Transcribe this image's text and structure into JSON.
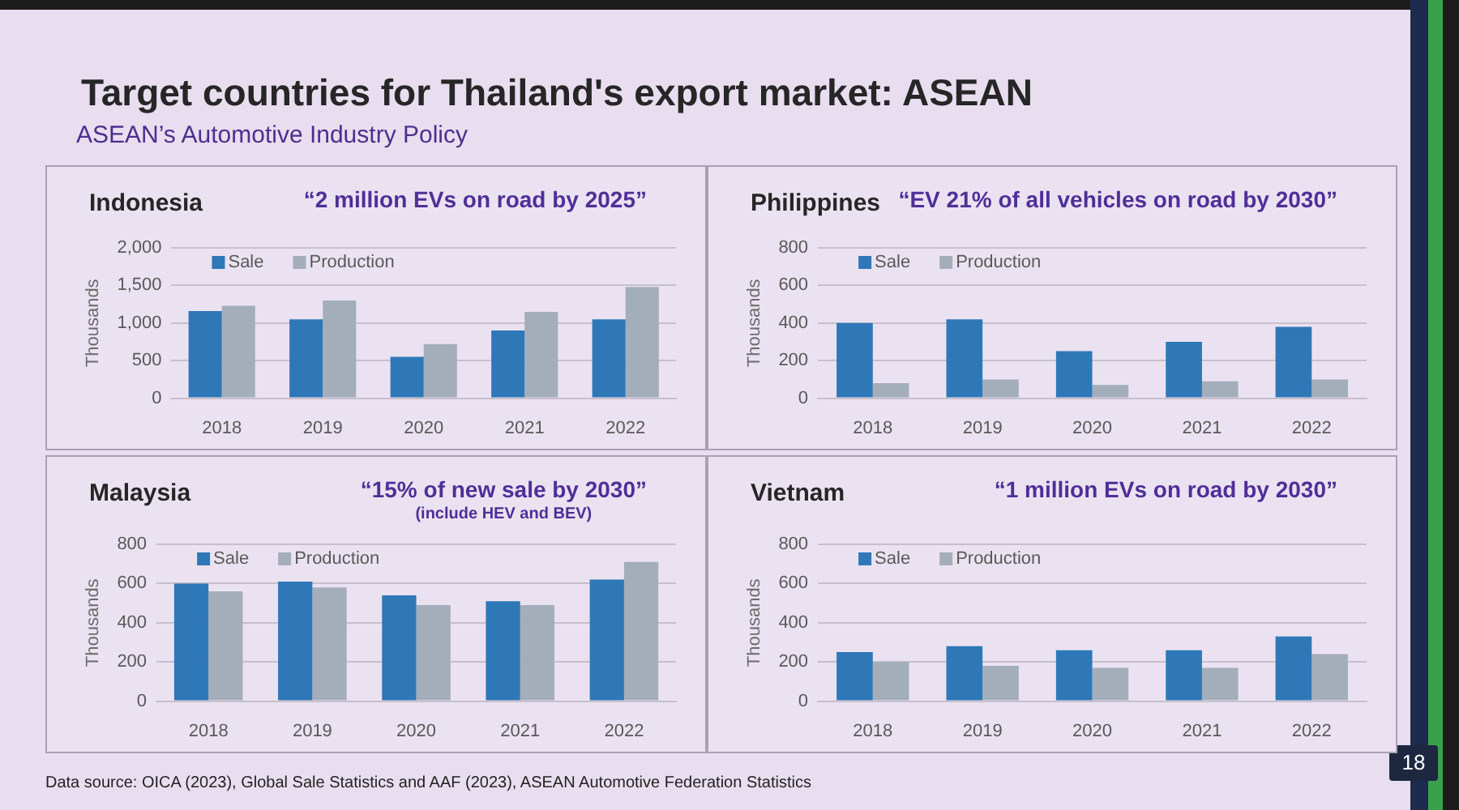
{
  "chart_data": [
    {
      "type": "other",
      "title": "Target countries for Thailand's export market: ASEAN",
      "subtitle": "ASEAN’s Automotive Industry Policy",
      "annotations": [
        "Data source: OICA (2023), Global Sale Statistics and AAF (2023), ASEAN Automotive Federation Statistics",
        "18"
      ]
    },
    {
      "type": "bar",
      "title": "Indonesia",
      "subtitle": "“2 million EVs on road by 2025”",
      "ylabel": "Thousands",
      "categories": [
        "2018",
        "2019",
        "2020",
        "2021",
        "2022"
      ],
      "series": [
        {
          "name": "Sale",
          "color": "#2e78b8",
          "values": [
            1160,
            1050,
            550,
            900,
            1050
          ]
        },
        {
          "name": "Production",
          "color": "#a4aebb",
          "values": [
            1230,
            1300,
            720,
            1150,
            1480
          ]
        }
      ],
      "ylim": [
        0,
        2000
      ],
      "yticks": [
        0,
        500,
        {
          "value": 1000,
          "label": "1,000"
        },
        {
          "value": 1500,
          "label": "1,500"
        },
        {
          "value": 2000,
          "label": "2,000"
        }
      ],
      "grid": "y",
      "legend": "top left"
    },
    {
      "type": "bar",
      "title": "Philippines",
      "subtitle": "“EV 21% of all vehicles on road by 2030”",
      "ylabel": "Thousands",
      "categories": [
        "2018",
        "2019",
        "2020",
        "2021",
        "2022"
      ],
      "series": [
        {
          "name": "Sale",
          "color": "#2e78b8",
          "values": [
            400,
            420,
            250,
            300,
            380
          ]
        },
        {
          "name": "Production",
          "color": "#a4aebb",
          "values": [
            80,
            100,
            70,
            90,
            100
          ]
        }
      ],
      "ylim": [
        0,
        800
      ],
      "yticks": [
        0,
        200,
        400,
        600,
        800
      ],
      "grid": "y",
      "legend": "top left"
    },
    {
      "type": "bar",
      "title": "Malaysia",
      "subtitle": "“15% of new sale by 2030”",
      "annotations": [
        "(include HEV and BEV)"
      ],
      "ylabel": "Thousands",
      "categories": [
        "2018",
        "2019",
        "2020",
        "2021",
        "2022"
      ],
      "series": [
        {
          "name": "Sale",
          "color": "#2e78b8",
          "values": [
            600,
            610,
            540,
            510,
            620
          ]
        },
        {
          "name": "Production",
          "color": "#a4aebb",
          "values": [
            560,
            580,
            490,
            490,
            710
          ]
        }
      ],
      "ylim": [
        0,
        800
      ],
      "yticks": [
        0,
        200,
        400,
        600,
        800
      ],
      "grid": "y",
      "legend": "top left"
    },
    {
      "type": "bar",
      "title": "Vietnam",
      "subtitle": "“1 million EVs on road by 2030”",
      "ylabel": "Thousands",
      "categories": [
        "2018",
        "2019",
        "2020",
        "2021",
        "2022"
      ],
      "series": [
        {
          "name": "Sale",
          "color": "#2e78b8",
          "values": [
            250,
            280,
            260,
            260,
            330
          ]
        },
        {
          "name": "Production",
          "color": "#a4aebb",
          "values": [
            200,
            180,
            170,
            170,
            240
          ]
        }
      ],
      "ylim": [
        0,
        800
      ],
      "yticks": [
        0,
        200,
        400,
        600,
        800
      ],
      "grid": "y",
      "legend": "top left"
    }
  ]
}
